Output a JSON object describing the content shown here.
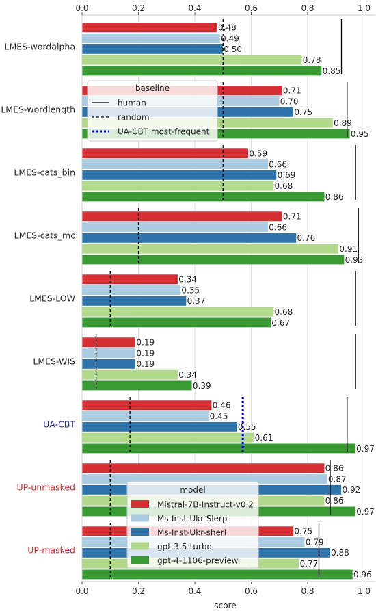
{
  "chart_data": {
    "type": "bar",
    "orientation": "horizontal",
    "xlabel": "score",
    "xlim": [
      0,
      1.04
    ],
    "xticks": [
      "0.0",
      "0.2",
      "0.4",
      "0.6",
      "0.8",
      "1.0"
    ],
    "xtick_values": [
      0,
      0.2,
      0.4,
      0.6,
      0.8,
      1.0
    ],
    "grid": true,
    "categories": [
      {
        "label": "LMES-wordalpha",
        "color": "#262626"
      },
      {
        "label": "LMES-wordlength",
        "color": "#262626"
      },
      {
        "label": "LMES-cats_bin",
        "color": "#262626"
      },
      {
        "label": "LMES-cats_mc",
        "color": "#262626"
      },
      {
        "label": "LMES-LOW",
        "color": "#262626"
      },
      {
        "label": "LMES-WIS",
        "color": "#262626"
      },
      {
        "label": "UA-CBT",
        "color": "#1f2aa0"
      },
      {
        "label": "UP-unmasked",
        "color": "#d62728"
      },
      {
        "label": "UP-masked",
        "color": "#d62728"
      }
    ],
    "series": [
      {
        "name": "Mistral-7B-Instruct-v0.2",
        "color": "#d62f33",
        "values": [
          0.48,
          0.71,
          0.59,
          0.71,
          0.34,
          0.19,
          0.46,
          0.86,
          0.75
        ],
        "labels": [
          "0.48",
          "0.71",
          "0.59",
          "0.71",
          "0.34",
          "0.19",
          "0.46",
          "0.86",
          "0.75"
        ]
      },
      {
        "name": "Ms-Inst-Ukr-Slerp",
        "color": "#abcbe1",
        "values": [
          0.49,
          0.7,
          0.66,
          0.66,
          0.35,
          0.19,
          0.45,
          0.87,
          0.79
        ],
        "labels": [
          "0.49",
          "0.70",
          "0.66",
          "0.66",
          "0.35",
          "0.19",
          "0.45",
          "0.87",
          "0.79"
        ]
      },
      {
        "name": "Ms-Inst-Ukr-sherl",
        "color": "#2e74ab",
        "values": [
          0.5,
          0.75,
          0.69,
          0.76,
          0.37,
          0.19,
          0.55,
          0.92,
          0.88
        ],
        "labels": [
          "0.50",
          "0.75",
          "0.69",
          "0.76",
          "0.37",
          "0.19",
          "0.55",
          "0.92",
          "0.88"
        ]
      },
      {
        "name": "gpt-3.5-turbo",
        "color": "#b2d88c",
        "values": [
          0.78,
          0.89,
          0.68,
          0.91,
          0.68,
          0.34,
          0.61,
          0.86,
          0.77
        ],
        "labels": [
          "0.78",
          "0.89",
          "0.68",
          "0.91",
          "0.68",
          "0.34",
          "0.61",
          "0.86",
          "0.77"
        ]
      },
      {
        "name": "gpt-4-1106-preview",
        "color": "#3a9a34",
        "values": [
          0.85,
          0.95,
          0.86,
          0.93,
          0.67,
          0.39,
          0.97,
          0.97,
          0.96
        ],
        "labels": [
          "0.85",
          "0.95",
          "0.86",
          "0.93",
          "0.67",
          "0.39",
          "0.97",
          "0.97",
          "0.96"
        ]
      }
    ],
    "baselines": [
      {
        "name": "human",
        "style": "solid",
        "color": "#000000",
        "values": [
          0.92,
          0.94,
          0.97,
          0.98,
          0.97,
          0.97,
          0.94,
          0.88,
          0.84
        ]
      },
      {
        "name": "random",
        "style": "dashed",
        "color": "#000000",
        "values": [
          0.5,
          0.5,
          0.5,
          0.2,
          0.1,
          0.05,
          0.17,
          0.1,
          0.1
        ]
      },
      {
        "name": "UA-CBT most-frequent",
        "style": "dotted",
        "color": "#0000ee",
        "values": [
          null,
          null,
          null,
          null,
          null,
          null,
          0.57,
          null,
          null
        ]
      }
    ],
    "legend_baseline": {
      "title": "baseline",
      "placement": "upper-left"
    },
    "legend_model": {
      "title": "model",
      "placement": "lower-center"
    }
  }
}
